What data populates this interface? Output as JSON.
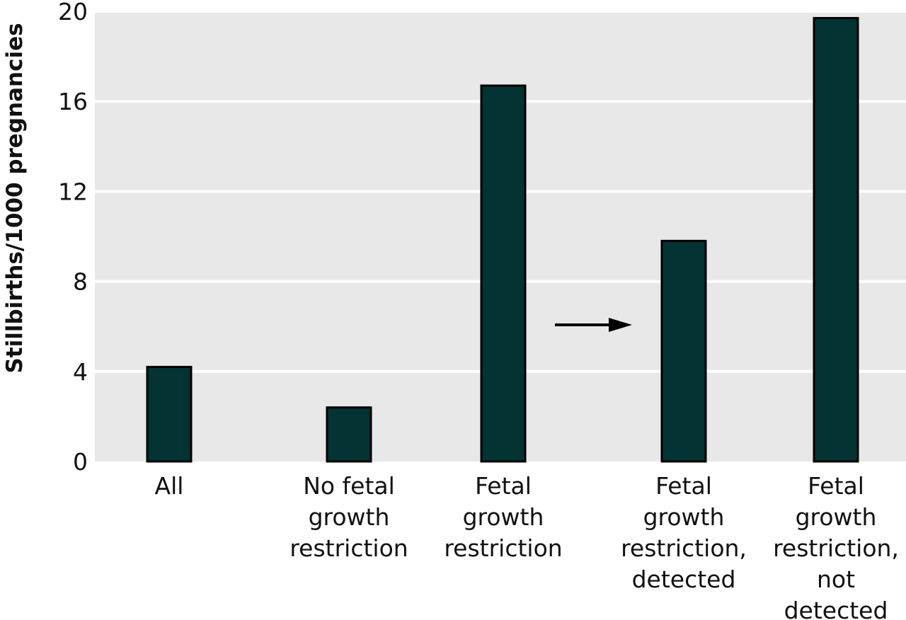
{
  "chart_data": {
    "type": "bar",
    "title": "",
    "xlabel": "",
    "ylabel": "Stillbirths/1000 pregnancies",
    "ylim": [
      0,
      20
    ],
    "yticks": [
      "0",
      "4",
      "8",
      "12",
      "16",
      "20"
    ],
    "grid": "horizontal",
    "bar_color": "#033333",
    "background_color": "#e8e8e8",
    "categories": [
      [
        "All"
      ],
      [
        "No fetal",
        "growth",
        "restriction"
      ],
      [
        "Fetal",
        "growth",
        "restriction"
      ],
      [
        "Fetal",
        "growth",
        "restriction,",
        "detected"
      ],
      [
        "Fetal",
        "growth",
        "restriction,",
        "not",
        "detected"
      ]
    ],
    "values": [
      4.2,
      2.4,
      16.7,
      9.8,
      19.7
    ],
    "annotations": [
      {
        "type": "arrow",
        "direction": "right",
        "points_to": "Fetal growth restriction, detected"
      }
    ]
  }
}
